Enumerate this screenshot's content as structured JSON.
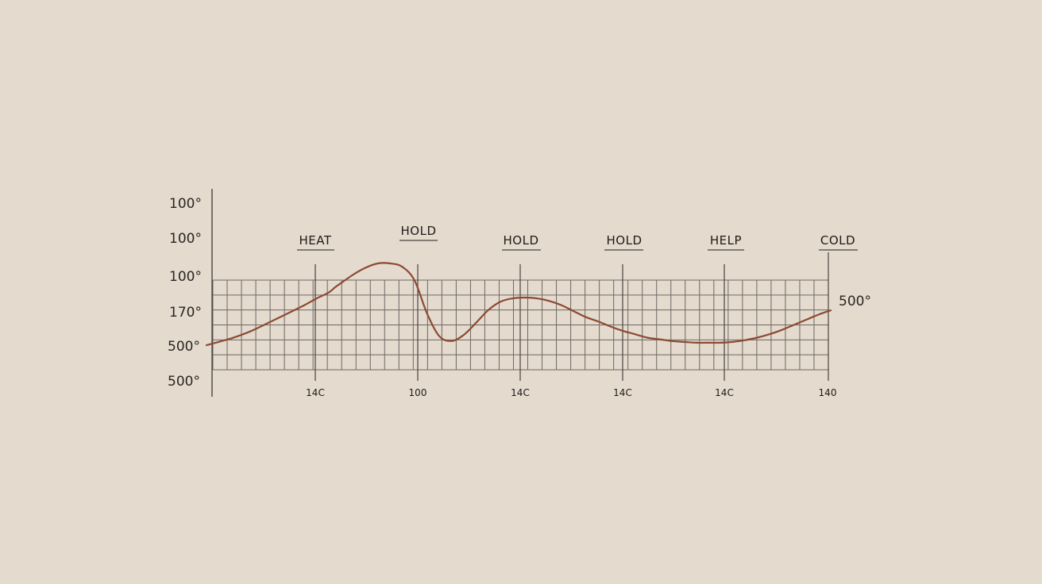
{
  "chart_data": {
    "type": "line",
    "title": "",
    "xlabel": "",
    "ylabel": "",
    "y_tick_labels": [
      "100°",
      "100°",
      "100°",
      "170°",
      "500°",
      "500°"
    ],
    "x_tick_labels": [
      "14C",
      "100",
      "14C",
      "14C",
      "14C",
      "140"
    ],
    "phase_labels": [
      "HEAT",
      "HOLD",
      "HOLD",
      "HOLD",
      "HELP",
      "COLD"
    ],
    "end_label": "500°",
    "grid": true,
    "colors": {
      "background": "#e4dace",
      "grid": "#6e6863",
      "axis": "#4a4540",
      "line": "#8c4a32",
      "text": "#1f1b18"
    },
    "series": [
      {
        "x": [
          0.0,
          0.1,
          0.2,
          0.3,
          0.4,
          0.5,
          0.6,
          0.7,
          0.8,
          0.9,
          1.0,
          1.05,
          1.1,
          1.2,
          1.3,
          1.4,
          1.5,
          1.6,
          1.7,
          1.8,
          1.9,
          2.0,
          2.1,
          2.2,
          2.3,
          2.4,
          2.5,
          2.6,
          2.7,
          2.8,
          2.9,
          3.0,
          3.1,
          3.2,
          3.3,
          3.4,
          3.5,
          3.6,
          3.7,
          3.8,
          3.9,
          4.0,
          4.1,
          4.2,
          4.3,
          4.4,
          4.5,
          4.6,
          4.7,
          4.8,
          4.9,
          5.0,
          5.1
        ],
        "values": [
          -0.02,
          0.02,
          0.06,
          0.11,
          0.17,
          0.24,
          0.31,
          0.38,
          0.45,
          0.53,
          0.6,
          0.66,
          0.71,
          0.81,
          0.89,
          0.94,
          0.94,
          0.9,
          0.74,
          0.36,
          0.09,
          0.03,
          0.1,
          0.24,
          0.39,
          0.49,
          0.53,
          0.54,
          0.53,
          0.5,
          0.45,
          0.38,
          0.31,
          0.26,
          0.2,
          0.15,
          0.11,
          0.07,
          0.05,
          0.03,
          0.02,
          0.01,
          0.01,
          0.01,
          0.02,
          0.04,
          0.07,
          0.11,
          0.16,
          0.22,
          0.28,
          0.34,
          0.39
        ]
      }
    ]
  }
}
